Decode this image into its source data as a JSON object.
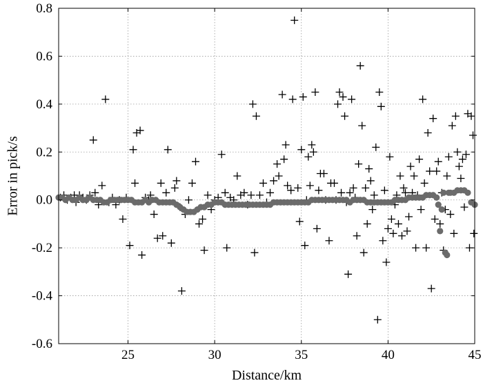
{
  "chart_data": {
    "type": "scatter",
    "xlabel": "Distance/km",
    "ylabel": "Error in pick/s",
    "xlim": [
      21,
      45
    ],
    "ylim": [
      -0.6,
      0.8
    ],
    "x_ticks": [
      25,
      30,
      35,
      40,
      45
    ],
    "y_ticks": [
      -0.6,
      -0.4,
      -0.2,
      0.0,
      0.2,
      0.4,
      0.6,
      0.8
    ],
    "x_tick_labels": [
      "25",
      "30",
      "35",
      "40",
      "45"
    ],
    "y_tick_labels": [
      "-0.6",
      "-0.4",
      "-0.2",
      "0.0",
      "0.2",
      "0.4",
      "0.6",
      "0.8"
    ],
    "grid": true,
    "legend": "none",
    "series": [
      {
        "marker": "plus",
        "color": "#000000",
        "points": [
          [
            21.1,
            0.01
          ],
          [
            21.3,
            0.02
          ],
          [
            21.5,
            0.0
          ],
          [
            21.7,
            0.01
          ],
          [
            21.9,
            0.02
          ],
          [
            22.0,
            -0.01
          ],
          [
            22.2,
            0.02
          ],
          [
            22.4,
            0.01
          ],
          [
            22.6,
            0.0
          ],
          [
            22.8,
            0.02
          ],
          [
            23.0,
            0.25
          ],
          [
            23.1,
            0.03
          ],
          [
            23.3,
            -0.02
          ],
          [
            23.5,
            0.06
          ],
          [
            23.7,
            0.42
          ],
          [
            23.9,
            -0.01
          ],
          [
            24.1,
            0.01
          ],
          [
            24.3,
            -0.02
          ],
          [
            24.5,
            0.0
          ],
          [
            24.7,
            -0.08
          ],
          [
            24.9,
            0.01
          ],
          [
            25.1,
            -0.19
          ],
          [
            25.3,
            0.21
          ],
          [
            25.4,
            0.07
          ],
          [
            25.5,
            0.28
          ],
          [
            25.7,
            0.29
          ],
          [
            25.8,
            -0.23
          ],
          [
            26.0,
            0.01
          ],
          [
            26.2,
            0.0
          ],
          [
            26.3,
            0.02
          ],
          [
            26.5,
            -0.06
          ],
          [
            26.7,
            -0.16
          ],
          [
            26.9,
            0.07
          ],
          [
            27.0,
            -0.15
          ],
          [
            27.2,
            0.03
          ],
          [
            27.3,
            0.21
          ],
          [
            27.5,
            -0.18
          ],
          [
            27.7,
            0.05
          ],
          [
            27.8,
            0.08
          ],
          [
            28.0,
            -0.03
          ],
          [
            28.1,
            -0.38
          ],
          [
            28.3,
            -0.06
          ],
          [
            28.5,
            0.0
          ],
          [
            28.7,
            0.07
          ],
          [
            28.9,
            0.16
          ],
          [
            29.1,
            -0.1
          ],
          [
            29.3,
            -0.08
          ],
          [
            29.4,
            -0.21
          ],
          [
            29.6,
            0.02
          ],
          [
            29.8,
            -0.04
          ],
          [
            30.0,
            0.0
          ],
          [
            30.2,
            0.01
          ],
          [
            30.4,
            0.19
          ],
          [
            30.6,
            0.03
          ],
          [
            30.7,
            -0.2
          ],
          [
            30.9,
            0.01
          ],
          [
            31.1,
            0.0
          ],
          [
            31.3,
            0.1
          ],
          [
            31.5,
            0.02
          ],
          [
            31.7,
            0.03
          ],
          [
            31.9,
            -0.02
          ],
          [
            32.1,
            0.02
          ],
          [
            32.2,
            0.4
          ],
          [
            32.3,
            -0.22
          ],
          [
            32.4,
            0.35
          ],
          [
            32.6,
            0.02
          ],
          [
            32.8,
            0.07
          ],
          [
            33.0,
            -0.01
          ],
          [
            33.2,
            0.03
          ],
          [
            33.4,
            0.08
          ],
          [
            33.6,
            0.15
          ],
          [
            33.7,
            0.1
          ],
          [
            33.9,
            0.44
          ],
          [
            34.0,
            0.17
          ],
          [
            34.1,
            0.23
          ],
          [
            34.2,
            0.06
          ],
          [
            34.4,
            0.04
          ],
          [
            34.5,
            0.42
          ],
          [
            34.6,
            0.75
          ],
          [
            34.8,
            0.05
          ],
          [
            34.9,
            -0.09
          ],
          [
            35.0,
            0.21
          ],
          [
            35.1,
            0.43
          ],
          [
            35.2,
            -0.19
          ],
          [
            35.3,
            0.0
          ],
          [
            35.4,
            0.18
          ],
          [
            35.5,
            0.06
          ],
          [
            35.6,
            0.23
          ],
          [
            35.7,
            0.2
          ],
          [
            35.8,
            0.45
          ],
          [
            35.9,
            -0.12
          ],
          [
            36.0,
            0.04
          ],
          [
            36.1,
            0.11
          ],
          [
            36.3,
            0.11
          ],
          [
            36.4,
            0.0
          ],
          [
            36.6,
            -0.17
          ],
          [
            36.7,
            0.07
          ],
          [
            36.9,
            0.07
          ],
          [
            37.0,
            0.0
          ],
          [
            37.1,
            0.4
          ],
          [
            37.2,
            0.45
          ],
          [
            37.3,
            0.03
          ],
          [
            37.4,
            0.43
          ],
          [
            37.5,
            0.35
          ],
          [
            37.6,
            -0.01
          ],
          [
            37.7,
            -0.31
          ],
          [
            37.8,
            0.03
          ],
          [
            37.9,
            0.42
          ],
          [
            38.0,
            0.05
          ],
          [
            38.1,
            0.01
          ],
          [
            38.2,
            -0.15
          ],
          [
            38.3,
            0.15
          ],
          [
            38.4,
            0.56
          ],
          [
            38.5,
            0.31
          ],
          [
            38.6,
            -0.22
          ],
          [
            38.7,
            0.05
          ],
          [
            38.8,
            -0.1
          ],
          [
            38.9,
            0.13
          ],
          [
            39.0,
            0.08
          ],
          [
            39.1,
            -0.04
          ],
          [
            39.2,
            0.02
          ],
          [
            39.3,
            0.22
          ],
          [
            39.4,
            -0.5
          ],
          [
            39.5,
            0.45
          ],
          [
            39.6,
            0.39
          ],
          [
            39.7,
            -0.17
          ],
          [
            39.8,
            0.04
          ],
          [
            39.9,
            -0.26
          ],
          [
            40.0,
            -0.12
          ],
          [
            40.1,
            0.18
          ],
          [
            40.2,
            -0.08
          ],
          [
            40.3,
            -0.14
          ],
          [
            40.4,
            -0.02
          ],
          [
            40.5,
            0.02
          ],
          [
            40.6,
            -0.1
          ],
          [
            40.7,
            0.1
          ],
          [
            40.8,
            -0.15
          ],
          [
            40.9,
            0.05
          ],
          [
            41.0,
            0.03
          ],
          [
            41.1,
            -0.13
          ],
          [
            41.2,
            -0.07
          ],
          [
            41.3,
            0.14
          ],
          [
            41.4,
            0.03
          ],
          [
            41.5,
            0.1
          ],
          [
            41.6,
            -0.2
          ],
          [
            41.7,
            0.02
          ],
          [
            41.8,
            0.17
          ],
          [
            41.9,
            -0.04
          ],
          [
            42.0,
            0.42
          ],
          [
            42.1,
            0.07
          ],
          [
            42.2,
            -0.2
          ],
          [
            42.3,
            0.28
          ],
          [
            42.4,
            0.12
          ],
          [
            42.5,
            -0.37
          ],
          [
            42.6,
            0.34
          ],
          [
            42.7,
            -0.08
          ],
          [
            42.8,
            0.12
          ],
          [
            42.9,
            0.16
          ],
          [
            43.0,
            -0.1
          ],
          [
            43.1,
            0.03
          ],
          [
            43.2,
            -0.21
          ],
          [
            43.3,
            -0.04
          ],
          [
            43.4,
            0.1
          ],
          [
            43.5,
            0.18
          ],
          [
            43.6,
            -0.06
          ],
          [
            43.7,
            0.31
          ],
          [
            43.8,
            -0.14
          ],
          [
            43.9,
            0.35
          ],
          [
            44.0,
            0.2
          ],
          [
            44.1,
            0.14
          ],
          [
            44.2,
            0.09
          ],
          [
            44.3,
            0.17
          ],
          [
            44.4,
            -0.03
          ],
          [
            44.5,
            0.19
          ],
          [
            44.6,
            0.36
          ],
          [
            44.7,
            -0.2
          ],
          [
            44.8,
            0.35
          ],
          [
            44.9,
            0.27
          ],
          [
            44.95,
            -0.14
          ]
        ]
      },
      {
        "marker": "dot",
        "color": "#6b6b6b",
        "points": [
          [
            21.0,
            0.01
          ],
          [
            21.2,
            0.01
          ],
          [
            21.4,
            0.0
          ],
          [
            21.6,
            0.01
          ],
          [
            21.8,
            0.0
          ],
          [
            22.0,
            0.0
          ],
          [
            22.2,
            0.01
          ],
          [
            22.4,
            0.0
          ],
          [
            22.6,
            0.0
          ],
          [
            22.8,
            0.01
          ],
          [
            23.0,
            0.0
          ],
          [
            23.2,
            0.0
          ],
          [
            23.4,
            0.0
          ],
          [
            23.6,
            -0.01
          ],
          [
            23.8,
            -0.01
          ],
          [
            24.0,
            0.0
          ],
          [
            24.2,
            0.0
          ],
          [
            24.4,
            0.0
          ],
          [
            24.6,
            0.0
          ],
          [
            24.8,
            0.0
          ],
          [
            25.0,
            0.0
          ],
          [
            25.2,
            0.0
          ],
          [
            25.4,
            -0.01
          ],
          [
            25.6,
            -0.01
          ],
          [
            25.8,
            -0.01
          ],
          [
            26.0,
            0.0
          ],
          [
            26.2,
            -0.01
          ],
          [
            26.4,
            0.0
          ],
          [
            26.6,
            0.0
          ],
          [
            26.8,
            -0.01
          ],
          [
            27.0,
            -0.01
          ],
          [
            27.2,
            -0.01
          ],
          [
            27.4,
            -0.01
          ],
          [
            27.6,
            -0.01
          ],
          [
            27.8,
            -0.02
          ],
          [
            28.0,
            -0.03
          ],
          [
            28.2,
            -0.04
          ],
          [
            28.4,
            -0.05
          ],
          [
            28.6,
            -0.05
          ],
          [
            28.8,
            -0.05
          ],
          [
            29.0,
            -0.04
          ],
          [
            29.2,
            -0.03
          ],
          [
            29.4,
            -0.03
          ],
          [
            29.6,
            -0.02
          ],
          [
            29.8,
            -0.02
          ],
          [
            30.0,
            -0.01
          ],
          [
            30.2,
            -0.01
          ],
          [
            30.4,
            -0.01
          ],
          [
            30.6,
            -0.02
          ],
          [
            30.8,
            -0.02
          ],
          [
            31.0,
            -0.02
          ],
          [
            31.2,
            -0.02
          ],
          [
            31.4,
            -0.02
          ],
          [
            31.6,
            -0.02
          ],
          [
            31.8,
            -0.02
          ],
          [
            32.0,
            -0.02
          ],
          [
            32.2,
            -0.02
          ],
          [
            32.4,
            -0.02
          ],
          [
            32.6,
            -0.02
          ],
          [
            32.8,
            -0.02
          ],
          [
            33.0,
            -0.02
          ],
          [
            33.2,
            -0.02
          ],
          [
            33.4,
            -0.01
          ],
          [
            33.6,
            -0.01
          ],
          [
            33.8,
            -0.01
          ],
          [
            34.0,
            -0.01
          ],
          [
            34.2,
            -0.01
          ],
          [
            34.4,
            -0.01
          ],
          [
            34.6,
            -0.01
          ],
          [
            34.8,
            -0.01
          ],
          [
            35.0,
            -0.01
          ],
          [
            35.2,
            -0.01
          ],
          [
            35.4,
            -0.01
          ],
          [
            35.6,
            0.0
          ],
          [
            35.8,
            0.0
          ],
          [
            36.0,
            0.0
          ],
          [
            36.2,
            0.0
          ],
          [
            36.4,
            0.0
          ],
          [
            36.6,
            0.0
          ],
          [
            36.8,
            0.0
          ],
          [
            37.0,
            0.0
          ],
          [
            37.2,
            0.0
          ],
          [
            37.4,
            0.0
          ],
          [
            37.6,
            0.0
          ],
          [
            37.8,
            -0.01
          ],
          [
            38.0,
            0.0
          ],
          [
            38.2,
            0.0
          ],
          [
            38.4,
            0.0
          ],
          [
            38.6,
            0.0
          ],
          [
            38.8,
            -0.01
          ],
          [
            39.0,
            -0.01
          ],
          [
            39.2,
            -0.01
          ],
          [
            39.4,
            -0.01
          ],
          [
            39.6,
            -0.01
          ],
          [
            39.8,
            -0.01
          ],
          [
            40.0,
            -0.01
          ],
          [
            40.2,
            -0.01
          ],
          [
            40.4,
            0.0
          ],
          [
            40.6,
            0.0
          ],
          [
            40.8,
            0.0
          ],
          [
            41.0,
            0.0
          ],
          [
            41.2,
            0.01
          ],
          [
            41.4,
            0.01
          ],
          [
            41.6,
            0.01
          ],
          [
            41.8,
            0.01
          ],
          [
            42.0,
            0.01
          ],
          [
            42.2,
            0.02
          ],
          [
            42.4,
            0.02
          ],
          [
            42.6,
            0.02
          ],
          [
            42.8,
            0.01
          ],
          [
            42.9,
            -0.02
          ],
          [
            43.0,
            -0.13
          ],
          [
            43.1,
            -0.04
          ],
          [
            43.2,
            0.03
          ],
          [
            43.3,
            -0.22
          ],
          [
            43.4,
            -0.23
          ],
          [
            43.5,
            0.03
          ],
          [
            43.6,
            0.03
          ],
          [
            43.8,
            0.03
          ],
          [
            44.0,
            0.04
          ],
          [
            44.2,
            0.04
          ],
          [
            44.4,
            0.04
          ],
          [
            44.6,
            0.03
          ],
          [
            44.8,
            -0.01
          ],
          [
            45.0,
            -0.02
          ]
        ]
      }
    ]
  }
}
